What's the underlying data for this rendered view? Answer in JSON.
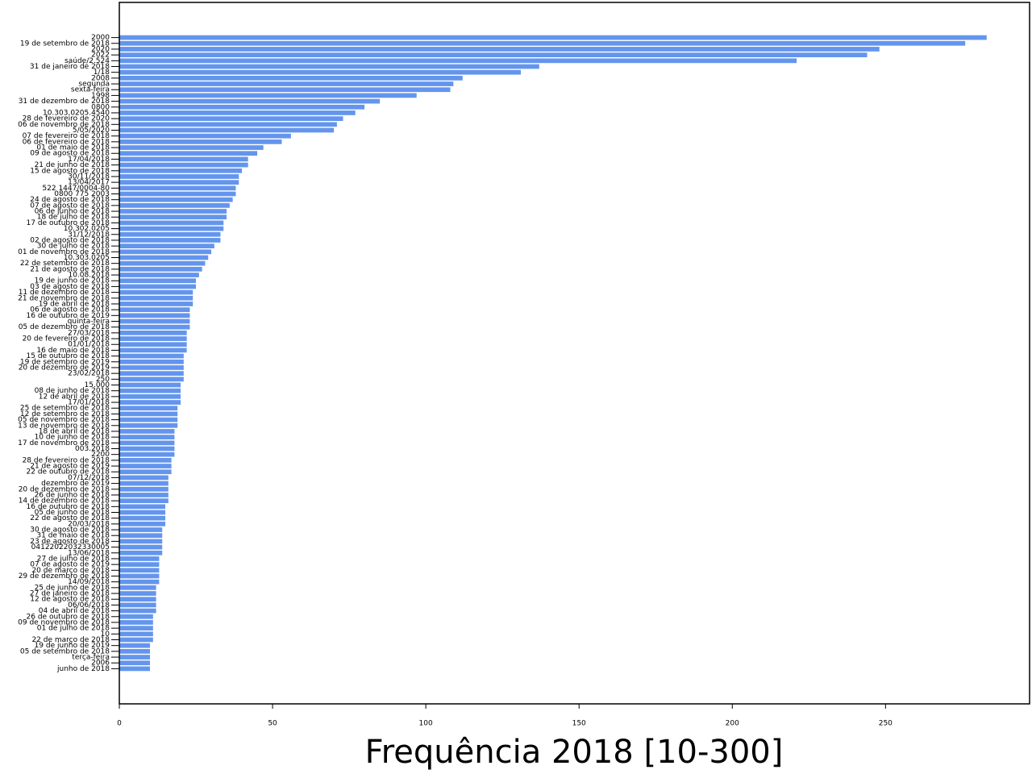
{
  "chart_data": {
    "type": "barh",
    "xlabel": "Frequência 2018 [10-300]",
    "color": "#6495ed",
    "xlim": [
      0,
      297
    ],
    "xticks": [
      0,
      50,
      100,
      150,
      200,
      250
    ],
    "categories": [
      "2000",
      "19 de setembro de 2018",
      "2020",
      "2022",
      "saúde/2.524",
      "31 de janeiro de 2018",
      "1/18",
      "2008",
      "segunda",
      "sexta-feira",
      "1998",
      "31 de dezembro de 2018",
      "0800",
      "10.303.0205.4540",
      "28 de fevereiro de 2020",
      "06 de novembro de 2018",
      "5/05/2020",
      "07 de fevereiro de 2018",
      "06 de fevereiro de 2018",
      "01 de maio de 2018",
      "09 de agosto de 2018",
      "17/04/2018",
      "21 de junho de 2018",
      "15 de agosto de 2018",
      "30/11/2018",
      "13/04/2017",
      "522 1447/0004-80",
      "0800 775 2003",
      "24 de agosto de 2018",
      "07 de agosto de 2018",
      "06 de junho de 2018",
      "18 de julho de 2018",
      "17 de outubro de 2018",
      "10.302.0205",
      "31/12/2018",
      "02 de agosto de 2018",
      "30 de julho de 2018",
      "01 de novembro de 2018",
      "10.303.0205",
      "22 de setembro de 2018",
      "21 de agosto de 2018",
      "10.08.2018",
      "19 de junho de 2018",
      "03 de agosto de 2018",
      "11 de dezembro de 2018",
      "21 de novembro de 2018",
      "19 de abril de 2018",
      "06 de agosto de 2018",
      "16 de outubro de 2019",
      "quinta-feira",
      "05 de dezembro de 2018",
      "27/03/2018",
      "20 de fevereiro de 2018",
      "01/01/2018",
      "16 de maio de 2018",
      "15 de outubro de 2018",
      "19 de setembro de 2019",
      "20 de dezembro de 2019",
      "23/02/2018",
      "250",
      "15.000",
      "08 de junho de 2018",
      "12 de abril de 2018",
      "17/01/2018",
      "25 de setembro de 2018",
      "12 de setembro de 2018",
      "05 de novembro de 2018",
      "13 de novembro de 2018",
      "18 de abril de 2018",
      "10 de junho de 2018",
      "17 de novembro de 2018",
      "003.2018",
      "2200",
      "28 de fevereiro de 2018",
      "21 de agosto de 2019",
      "22 de outubro de 2018",
      "07/12/2018",
      "dezembro de 2019",
      "20 de dezembro de 2018",
      "26 de junho de 2018",
      "14 de dezembro de 2018",
      "16 de outubro de 2018",
      "05 de junho de 2018",
      "22 de agosto de 2018",
      "20/03/2018",
      "30 de agosto de 2018",
      "31 de maio de 2018",
      "23 de agosto de 2018",
      "04122022032330005",
      "13/06/2018",
      "27 de julho de 2018",
      "07 de agosto de 2019",
      "20 de março de 2018",
      "29 de dezembro de 2018",
      "14/09/2018",
      "25 de junho de 2018",
      "27 de janeiro de 2018",
      "12 de agosto de 2018",
      "06/06/2018",
      "04 de abril de 2018",
      "26 de outubro de 2018",
      "09 de novembro de 2018",
      "01 de julho de 2018",
      "10",
      "22 de março de 2018",
      "19 de junho de 2019",
      "05 de setembro de 2018",
      "terça-feira",
      "2006",
      "junho de 2018"
    ],
    "values": [
      283,
      276,
      248,
      244,
      221,
      137,
      131,
      112,
      109,
      108,
      97,
      85,
      80,
      77,
      73,
      71,
      70,
      56,
      53,
      47,
      45,
      42,
      42,
      40,
      39,
      39,
      38,
      38,
      37,
      36,
      35,
      35,
      34,
      34,
      33,
      33,
      31,
      30,
      29,
      28,
      27,
      26,
      25,
      25,
      24,
      24,
      24,
      23,
      23,
      23,
      23,
      22,
      22,
      22,
      22,
      21,
      21,
      21,
      21,
      21,
      20,
      20,
      20,
      20,
      19,
      19,
      19,
      19,
      18,
      18,
      18,
      18,
      18,
      17,
      17,
      17,
      16,
      16,
      16,
      16,
      16,
      15,
      15,
      15,
      15,
      14,
      14,
      14,
      14,
      14,
      13,
      13,
      13,
      13,
      13,
      12,
      12,
      12,
      12,
      12,
      11,
      11,
      11,
      11,
      11,
      10,
      10,
      10,
      10,
      10
    ]
  }
}
